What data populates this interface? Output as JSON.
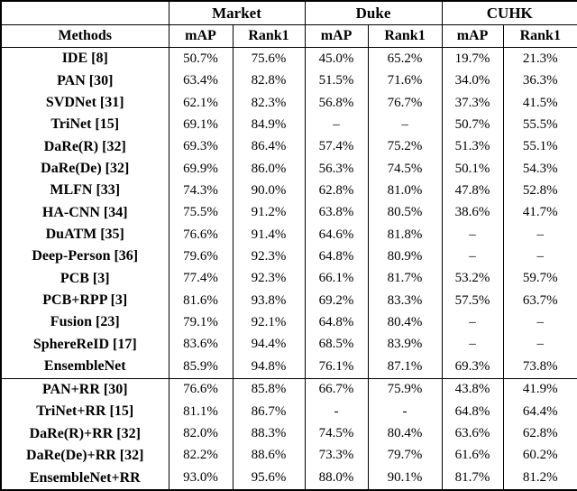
{
  "colors": {
    "background": "#ffffff",
    "text": "#000000",
    "border": "#000000"
  },
  "table": {
    "corner_label": "",
    "group_headers": [
      "Market",
      "Duke",
      "CUHK"
    ],
    "methods_header": "Methods",
    "sub_headers": [
      "mAP",
      "Rank1",
      "mAP",
      "Rank1",
      "mAP",
      "Rank1"
    ],
    "sections": [
      {
        "name": "baseline-methods",
        "rows": [
          {
            "method": "IDE [8]",
            "values": [
              "50.7%",
              "75.6%",
              "45.0%",
              "65.2%",
              "19.7%",
              "21.3%"
            ]
          },
          {
            "method": "PAN [30]",
            "values": [
              "63.4%",
              "82.8%",
              "51.5%",
              "71.6%",
              "34.0%",
              "36.3%"
            ]
          },
          {
            "method": "SVDNet [31]",
            "values": [
              "62.1%",
              "82.3%",
              "56.8%",
              "76.7%",
              "37.3%",
              "41.5%"
            ]
          },
          {
            "method": "TriNet [15]",
            "values": [
              "69.1%",
              "84.9%",
              "–",
              "–",
              "50.7%",
              "55.5%"
            ]
          },
          {
            "method": "DaRe(R) [32]",
            "values": [
              "69.3%",
              "86.4%",
              "57.4%",
              "75.2%",
              "51.3%",
              "55.1%"
            ]
          },
          {
            "method": "DaRe(De) [32]",
            "values": [
              "69.9%",
              "86.0%",
              "56.3%",
              "74.5%",
              "50.1%",
              "54.3%"
            ]
          },
          {
            "method": "MLFN [33]",
            "values": [
              "74.3%",
              "90.0%",
              "62.8%",
              "81.0%",
              "47.8%",
              "52.8%"
            ]
          },
          {
            "method": "HA-CNN [34]",
            "values": [
              "75.5%",
              "91.2%",
              "63.8%",
              "80.5%",
              "38.6%",
              "41.7%"
            ]
          },
          {
            "method": "DuATM [35]",
            "values": [
              "76.6%",
              "91.4%",
              "64.6%",
              "81.8%",
              "–",
              "–"
            ]
          },
          {
            "method": "Deep-Person [36]",
            "values": [
              "79.6%",
              "92.3%",
              "64.8%",
              "80.9%",
              "–",
              "–"
            ]
          },
          {
            "method": "PCB [3]",
            "values": [
              "77.4%",
              "92.3%",
              "66.1%",
              "81.7%",
              "53.2%",
              "59.7%"
            ]
          },
          {
            "method": "PCB+RPP [3]",
            "values": [
              "81.6%",
              "93.8%",
              "69.2%",
              "83.3%",
              "57.5%",
              "63.7%"
            ]
          },
          {
            "method": "Fusion [23]",
            "values": [
              "79.1%",
              "92.1%",
              "64.8%",
              "80.4%",
              "–",
              "–"
            ]
          },
          {
            "method": "SphereReID [17]",
            "values": [
              "83.6%",
              "94.4%",
              "68.5%",
              "83.9%",
              "–",
              "–"
            ]
          },
          {
            "method": "EnsembleNet",
            "values": [
              "85.9%",
              "94.8%",
              "76.1%",
              "87.1%",
              "69.3%",
              "73.8%"
            ]
          }
        ]
      },
      {
        "name": "re-ranking-methods",
        "rows": [
          {
            "method": "PAN+RR [30]",
            "values": [
              "76.6%",
              "85.8%",
              "66.7%",
              "75.9%",
              "43.8%",
              "41.9%"
            ]
          },
          {
            "method": "TriNet+RR [15]",
            "values": [
              "81.1%",
              "86.7%",
              "-",
              "-",
              "64.8%",
              "64.4%"
            ]
          },
          {
            "method": "DaRe(R)+RR [32]",
            "values": [
              "82.0%",
              "88.3%",
              "74.5%",
              "80.4%",
              "63.6%",
              "62.8%"
            ]
          },
          {
            "method": "DaRe(De)+RR [32]",
            "values": [
              "82.2%",
              "88.6%",
              "73.3%",
              "79.7%",
              "61.6%",
              "60.2%"
            ]
          },
          {
            "method": "EnsembleNet+RR",
            "values": [
              "93.0%",
              "95.6%",
              "88.0%",
              "90.1%",
              "81.7%",
              "81.2%"
            ]
          }
        ]
      }
    ]
  }
}
